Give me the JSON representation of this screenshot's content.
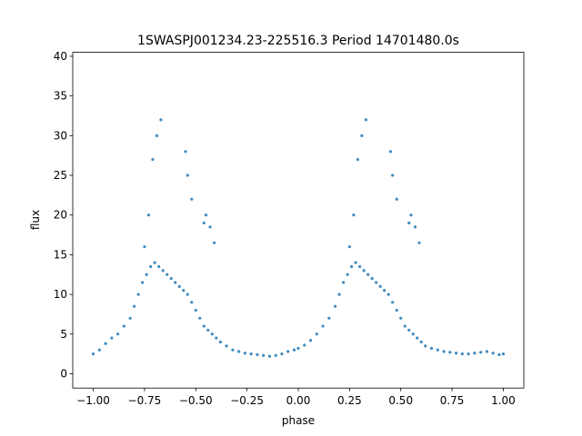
{
  "chart_data": {
    "type": "scatter",
    "title": "1SWASPJ001234.23-225516.3 Period 14701480.0s",
    "xlabel": "phase",
    "ylabel": "flux",
    "xlim": [
      -1.1,
      1.1
    ],
    "ylim": [
      -1.8,
      40.5
    ],
    "xticks": [
      -1.0,
      -0.75,
      -0.5,
      -0.25,
      0.0,
      0.25,
      0.5,
      0.75,
      1.0
    ],
    "xtick_labels": [
      "−1.00",
      "−0.75",
      "−0.50",
      "−0.25",
      "0.00",
      "0.25",
      "0.50",
      "0.75",
      "1.00"
    ],
    "yticks": [
      0,
      5,
      10,
      15,
      20,
      25,
      30,
      35,
      40
    ],
    "ytick_labels": [
      "0",
      "5",
      "10",
      "15",
      "20",
      "25",
      "30",
      "35",
      "40"
    ],
    "grid": false,
    "point_color": "#1f77b4",
    "series": [
      {
        "x": [
          -1.0,
          -0.97,
          -0.94,
          -0.91,
          -0.88,
          -0.85,
          -0.82,
          -0.8,
          -0.78,
          -0.76,
          -0.74,
          -0.72,
          -0.7,
          -0.68,
          -0.66,
          -0.64,
          -0.62,
          -0.6,
          -0.58,
          -0.56,
          -0.54,
          -0.52,
          -0.5,
          -0.48,
          -0.46,
          -0.44,
          -0.42,
          -0.4,
          -0.38,
          -0.35,
          -0.32,
          -0.29,
          -0.26,
          -0.23,
          -0.2,
          -0.17,
          -0.14,
          -0.11,
          -0.08,
          -0.05,
          -0.02,
          0.0,
          0.03,
          0.06,
          0.09,
          0.12,
          0.15,
          0.18,
          0.2,
          0.22,
          0.24,
          0.26,
          0.28,
          0.3,
          0.32,
          0.34,
          0.36,
          0.38,
          0.4,
          0.42,
          0.44,
          0.46,
          0.48,
          0.5,
          0.52,
          0.54,
          0.56,
          0.58,
          0.6,
          0.62,
          0.65,
          0.68,
          0.71,
          0.74,
          0.77,
          0.8,
          0.83,
          0.86,
          0.89,
          0.92,
          0.95,
          0.98,
          1.0
        ],
        "y": [
          2.5,
          3.0,
          3.8,
          4.5,
          5.0,
          6.0,
          7.0,
          8.5,
          10.0,
          11.5,
          12.5,
          13.5,
          14.0,
          13.5,
          13.0,
          12.5,
          12.0,
          11.5,
          11.0,
          10.5,
          10.0,
          9.0,
          8.0,
          7.0,
          6.0,
          5.5,
          5.0,
          4.5,
          4.0,
          3.5,
          3.0,
          2.8,
          2.6,
          2.5,
          2.4,
          2.3,
          2.2,
          2.3,
          2.5,
          2.8,
          3.0,
          3.2,
          3.6,
          4.2,
          5.0,
          6.0,
          7.0,
          8.5,
          10.0,
          11.5,
          12.5,
          13.5,
          14.0,
          13.5,
          13.0,
          12.5,
          12.0,
          11.5,
          11.0,
          10.5,
          10.0,
          9.0,
          8.0,
          7.0,
          6.0,
          5.5,
          5.0,
          4.5,
          4.0,
          3.5,
          3.2,
          3.0,
          2.8,
          2.7,
          2.6,
          2.5,
          2.5,
          2.6,
          2.7,
          2.8,
          2.6,
          2.4,
          2.5
        ]
      },
      {
        "x": [
          -0.75,
          -0.73,
          -0.71,
          -0.69,
          -0.67,
          -0.55,
          -0.54,
          -0.52,
          -0.46,
          -0.45,
          -0.43,
          -0.41,
          0.25,
          0.27,
          0.29,
          0.31,
          0.33,
          0.45,
          0.46,
          0.48,
          0.54,
          0.55,
          0.57,
          0.59
        ],
        "y": [
          16.0,
          20.0,
          27.0,
          30.0,
          32.0,
          28.0,
          25.0,
          22.0,
          19.0,
          20.0,
          18.5,
          16.5,
          16.0,
          20.0,
          27.0,
          30.0,
          32.0,
          28.0,
          25.0,
          22.0,
          19.0,
          20.0,
          18.5,
          16.5
        ]
      }
    ]
  }
}
